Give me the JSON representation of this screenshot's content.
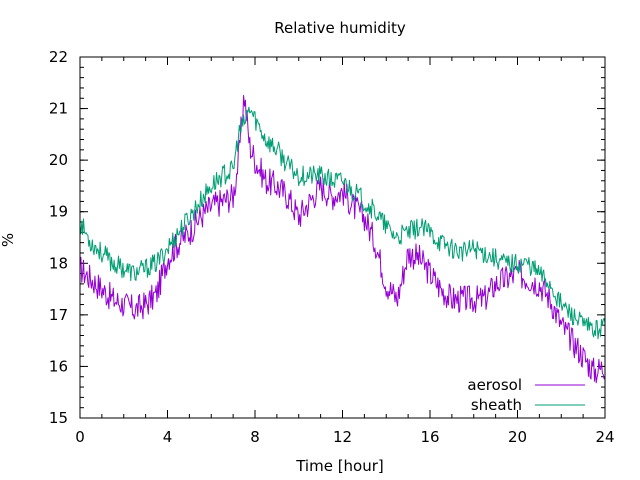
{
  "chart_data": {
    "type": "line",
    "title": "Relative humidity",
    "xlabel": "Time [hour]",
    "ylabel": "%",
    "xlim": [
      0,
      24
    ],
    "ylim": [
      15,
      22
    ],
    "xticks": [
      0,
      4,
      8,
      12,
      16,
      20,
      24
    ],
    "yticks": [
      15,
      16,
      17,
      18,
      19,
      20,
      21,
      22
    ],
    "x_minor_step": 1,
    "y_minor_step": 0.2,
    "grid": false,
    "legend_position": "bottom-right",
    "series": [
      {
        "name": "aerosol",
        "color": "#9400d3",
        "x": [
          0,
          0.5,
          1,
          1.5,
          2,
          2.5,
          3,
          3.5,
          4,
          4.5,
          5,
          5.5,
          6,
          6.5,
          7,
          7.25,
          7.5,
          7.75,
          8,
          8.5,
          9,
          9.5,
          10,
          10.5,
          11,
          11.5,
          12,
          12.5,
          13,
          13.5,
          14,
          14.5,
          15,
          15.5,
          16,
          16.5,
          17,
          17.5,
          18,
          18.5,
          19,
          19.5,
          20,
          20.5,
          21,
          21.5,
          22,
          22.5,
          23,
          23.5,
          24
        ],
        "y": [
          17.9,
          17.7,
          17.5,
          17.3,
          17.2,
          17.1,
          17.2,
          17.4,
          18.1,
          18.4,
          18.6,
          18.9,
          19.1,
          19.2,
          19.3,
          20.0,
          21.3,
          20.3,
          20.0,
          19.6,
          19.5,
          19.3,
          18.9,
          19.2,
          19.5,
          19.3,
          19.4,
          19.1,
          18.9,
          18.4,
          17.6,
          17.3,
          18.2,
          18.1,
          17.8,
          17.5,
          17.3,
          17.3,
          17.3,
          17.3,
          17.6,
          17.7,
          17.8,
          17.7,
          17.6,
          17.3,
          16.8,
          16.5,
          16.2,
          15.9,
          16.0
        ]
      },
      {
        "name": "sheath",
        "color": "#009e73",
        "x": [
          0,
          0.5,
          1,
          1.5,
          2,
          2.5,
          3,
          3.5,
          4,
          4.5,
          5,
          5.5,
          6,
          6.5,
          7,
          7.25,
          7.5,
          7.75,
          8,
          8.5,
          9,
          9.5,
          10,
          10.5,
          11,
          11.5,
          12,
          12.5,
          13,
          13.5,
          14,
          14.5,
          15,
          15.5,
          16,
          16.5,
          17,
          17.5,
          18,
          18.5,
          19,
          19.5,
          20,
          20.5,
          21,
          21.5,
          22,
          22.5,
          23,
          23.5,
          24
        ],
        "y": [
          18.8,
          18.4,
          18.2,
          18.0,
          17.9,
          17.8,
          17.9,
          18.0,
          18.3,
          18.6,
          18.9,
          19.2,
          19.5,
          19.7,
          19.8,
          20.5,
          20.7,
          21.0,
          20.8,
          20.4,
          20.2,
          19.9,
          19.7,
          19.7,
          19.7,
          19.6,
          19.6,
          19.4,
          19.2,
          19.0,
          18.7,
          18.5,
          18.6,
          18.7,
          18.6,
          18.4,
          18.3,
          18.2,
          18.3,
          18.2,
          18.1,
          18.0,
          18.0,
          18.0,
          17.8,
          17.6,
          17.2,
          17.0,
          16.8,
          16.7,
          16.8
        ]
      }
    ]
  }
}
